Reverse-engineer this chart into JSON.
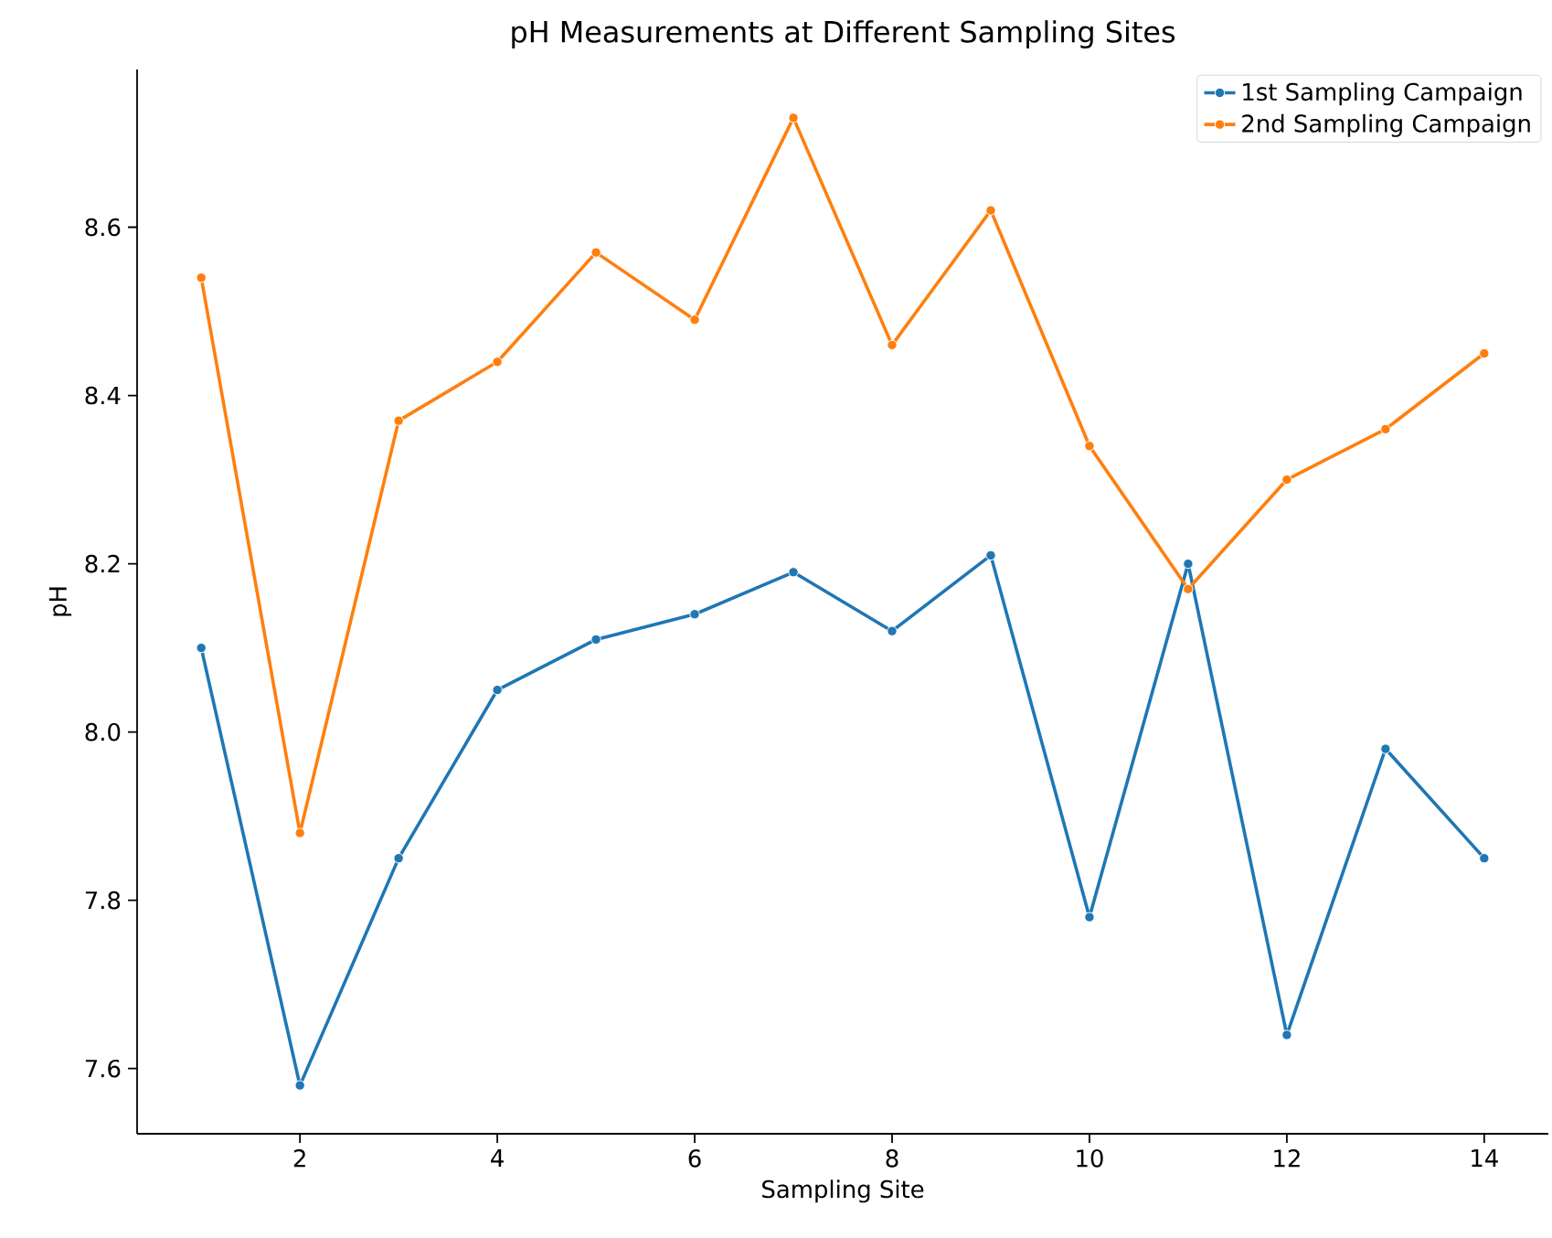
{
  "chart_data": {
    "type": "line",
    "title": "pH Measurements at Different Sampling Sites",
    "xlabel": "Sampling Site",
    "ylabel": "pH",
    "x": [
      1,
      2,
      3,
      4,
      5,
      6,
      7,
      8,
      9,
      10,
      11,
      12,
      13,
      14
    ],
    "series": [
      {
        "name": "1st Sampling Campaign",
        "color": "#1f77b4",
        "values": [
          8.1,
          7.58,
          7.85,
          8.05,
          8.11,
          8.14,
          8.19,
          8.12,
          8.21,
          7.78,
          8.2,
          7.64,
          7.98,
          7.85
        ]
      },
      {
        "name": "2nd Sampling Campaign",
        "color": "#ff7f0e",
        "values": [
          8.54,
          7.88,
          8.37,
          8.44,
          8.57,
          8.49,
          8.73,
          8.46,
          8.62,
          8.34,
          8.17,
          8.3,
          8.36,
          8.45
        ]
      }
    ],
    "xlim": [
      0.35,
      14.65
    ],
    "ylim": [
      7.5225,
      8.7875
    ],
    "xticks": [
      2,
      4,
      6,
      8,
      10,
      12,
      14
    ],
    "yticks": [
      {
        "value": 7.6,
        "label": "7.6"
      },
      {
        "value": 7.8,
        "label": "7.8"
      },
      {
        "value": 8.0,
        "label": "8.0"
      },
      {
        "value": 8.2,
        "label": "8.2"
      },
      {
        "value": 8.4,
        "label": "8.4"
      },
      {
        "value": 8.6,
        "label": "8.6"
      }
    ],
    "grid": false,
    "legend": "top right",
    "marker": "circle",
    "line_style": "solid"
  }
}
